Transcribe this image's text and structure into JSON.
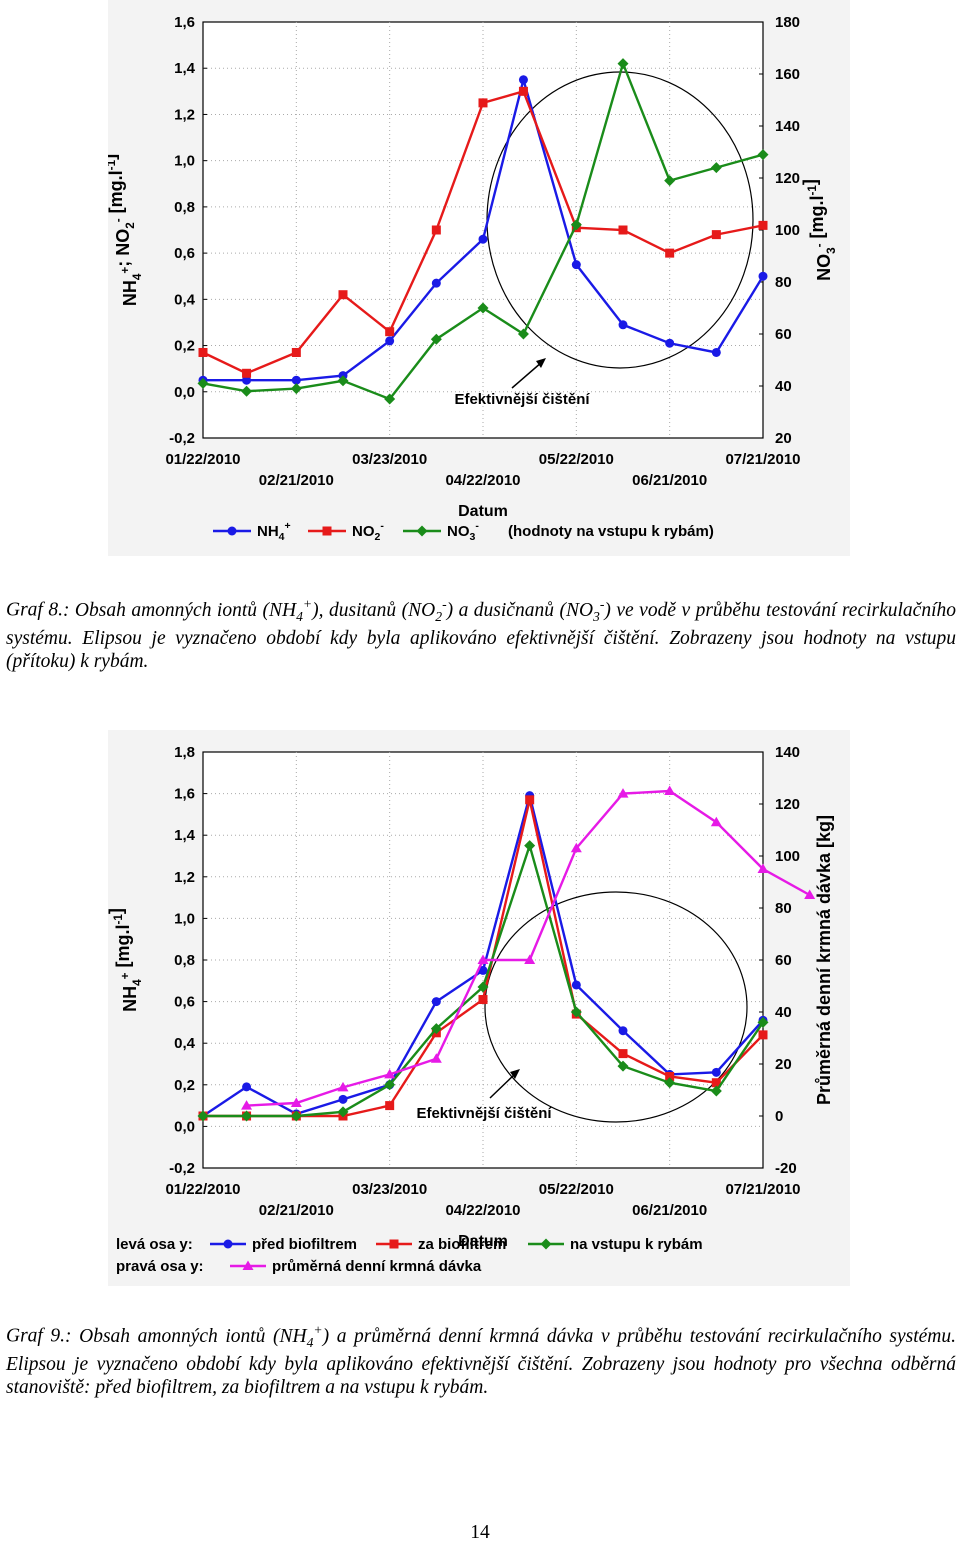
{
  "page_number": "14",
  "captions": [
    {
      "label": "Graf 8.",
      "text": ": Obsah amonných iontů (NH4+), dusitanů (NO2-) a dusičnanů (NO3-) ve vodě v průběhu testování recirkulačního systému. Elipsou je vyznačeno období kdy byla aplikováno efektivnější čištění. Zobrazeny jsou hodnoty na vstupu (přítoku) k rybám."
    },
    {
      "label": "Graf 9.",
      "text": ": Obsah amonných iontů (NH4+) a průměrná denní krmná dávka v průběhu testování recirkulačního systému. Elipsou je vyznačeno období kdy byla aplikováno efektivnější čištění. Zobrazeny jsou hodnoty pro všechna odběrná stanoviště: před biofiltrem, za biofiltrem a na vstupu k rybám."
    }
  ],
  "chart_data": [
    {
      "type": "line",
      "xlabel": "Datum",
      "ylabel_left": "NH4+; NO2- [mg.l-1]",
      "ylabel_right": "NO3- [mg.l-1]",
      "x_start": "2010-01-22",
      "x_ticks_top": [
        "01/22/2010",
        "03/23/2010",
        "05/22/2010",
        "07/21/2010"
      ],
      "x_ticks_bottom": [
        "02/21/2010",
        "04/22/2010",
        "06/21/2010"
      ],
      "x_range_days": [
        0,
        180
      ],
      "left_ylim": [
        -0.2,
        1.6
      ],
      "left_yticks": [
        "-0,2",
        "0,0",
        "0,2",
        "0,4",
        "0,6",
        "0,8",
        "1,0",
        "1,2",
        "1,4",
        "1,6"
      ],
      "right_ylim": [
        20,
        180
      ],
      "right_yticks": [
        "20",
        "40",
        "60",
        "80",
        "100",
        "120",
        "140",
        "160",
        "180"
      ],
      "annotation": "Efektivnější čištění",
      "legend_note": "(hodnoty na vstupu k rybám)",
      "x": [
        "2010-01-22",
        "2010-02-05",
        "2010-02-21",
        "2010-03-08",
        "2010-03-23",
        "2010-04-07",
        "2010-04-22",
        "2010-05-05",
        "2010-05-14",
        "2010-05-22",
        "2010-06-06",
        "2010-06-21",
        "2010-07-06",
        "2010-07-21"
      ],
      "series": [
        {
          "name": "NH4+",
          "axis": "left",
          "color": "#1a1ae6",
          "marker": "circle",
          "values": [
            0.05,
            0.05,
            0.05,
            0.07,
            0.22,
            0.47,
            0.66,
            1.35,
            null,
            0.55,
            0.29,
            0.21,
            0.17,
            0.5
          ]
        },
        {
          "name": "NO2-",
          "axis": "left",
          "color": "#e61a1a",
          "marker": "square",
          "values": [
            0.17,
            0.08,
            0.17,
            0.42,
            0.26,
            0.7,
            1.25,
            1.3,
            null,
            0.71,
            0.7,
            0.6,
            0.68,
            0.72
          ]
        },
        {
          "name": "NO3-",
          "axis": "right",
          "color": "#1a8c1a",
          "marker": "diamond",
          "values": [
            41,
            38,
            39,
            42,
            35,
            58,
            70,
            60,
            null,
            102,
            164,
            119,
            124,
            129
          ]
        }
      ]
    },
    {
      "type": "line",
      "xlabel": "Datum",
      "ylabel_left": "NH4+ [mg.l-1]",
      "ylabel_right": "Průměrná denní krmná dávka [kg]",
      "x_ticks_top": [
        "01/22/2010",
        "03/23/2010",
        "05/22/2010",
        "07/21/2010"
      ],
      "x_ticks_bottom": [
        "02/21/2010",
        "04/22/2010",
        "06/21/2010"
      ],
      "x_range_days": [
        0,
        180
      ],
      "left_ylim": [
        -0.2,
        1.8
      ],
      "left_yticks": [
        "-0,2",
        "0,0",
        "0,2",
        "0,4",
        "0,6",
        "0,8",
        "1,0",
        "1,2",
        "1,4",
        "1,6",
        "1,8"
      ],
      "right_ylim": [
        -20,
        140
      ],
      "right_yticks": [
        "-20",
        "0",
        "20",
        "40",
        "60",
        "80",
        "100",
        "120",
        "140"
      ],
      "annotation": "Efektivnější čištění",
      "legend_left_label": "levá osa y:",
      "legend_right_label": "pravá osa y:",
      "series": [
        {
          "name": "před biofiltrem",
          "axis": "left",
          "color": "#1a1ae6",
          "marker": "circle",
          "x": [
            "2010-01-22",
            "2010-02-05",
            "2010-02-21",
            "2010-03-08",
            "2010-03-23",
            "2010-04-07",
            "2010-04-22",
            "2010-05-07",
            "2010-05-22",
            "2010-06-06",
            "2010-06-21",
            "2010-07-06",
            "2010-07-21"
          ],
          "values": [
            0.05,
            0.19,
            0.06,
            0.13,
            0.2,
            0.6,
            0.75,
            1.59,
            0.68,
            0.46,
            0.25,
            0.26,
            0.51
          ]
        },
        {
          "name": "za biofiltrem",
          "axis": "left",
          "color": "#e61a1a",
          "marker": "square",
          "x": [
            "2010-01-22",
            "2010-02-05",
            "2010-02-21",
            "2010-03-08",
            "2010-03-23",
            "2010-04-07",
            "2010-04-22",
            "2010-05-07",
            "2010-05-22",
            "2010-06-06",
            "2010-06-21",
            "2010-07-06",
            "2010-07-21"
          ],
          "values": [
            0.05,
            0.05,
            0.05,
            0.05,
            0.1,
            0.45,
            0.61,
            1.57,
            0.54,
            0.35,
            0.24,
            0.21,
            0.44
          ]
        },
        {
          "name": "na vstupu k rybám",
          "axis": "left",
          "color": "#1a8c1a",
          "marker": "diamond",
          "x": [
            "2010-01-22",
            "2010-02-05",
            "2010-02-21",
            "2010-03-08",
            "2010-03-23",
            "2010-04-07",
            "2010-04-22",
            "2010-05-07",
            "2010-05-22",
            "2010-06-06",
            "2010-06-21",
            "2010-07-06",
            "2010-07-21"
          ],
          "values": [
            0.05,
            0.05,
            0.05,
            0.07,
            0.2,
            0.47,
            0.67,
            1.35,
            0.55,
            0.29,
            0.21,
            0.17,
            0.5
          ]
        },
        {
          "name": "průměrná denní krmná dávka",
          "axis": "right",
          "color": "#e61ae6",
          "marker": "triangle",
          "x": [
            "2010-02-05",
            "2010-02-21",
            "2010-03-08",
            "2010-03-23",
            "2010-04-07",
            "2010-04-22",
            "2010-05-07",
            "2010-05-22",
            "2010-06-06",
            "2010-06-21",
            "2010-07-06",
            "2010-07-21",
            "2010-08-05"
          ],
          "values": [
            4,
            5,
            11,
            16,
            22,
            60,
            60,
            103,
            124,
            125,
            113,
            95,
            85
          ]
        }
      ]
    }
  ]
}
